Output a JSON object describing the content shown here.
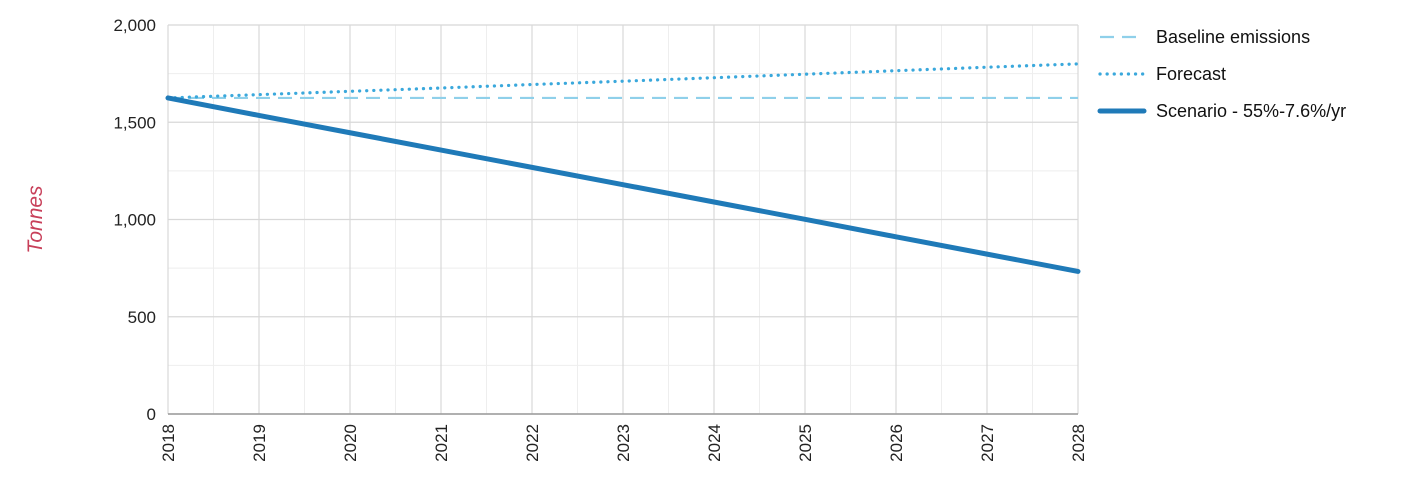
{
  "chart_data": {
    "type": "line",
    "title": "",
    "xlabel": "",
    "ylabel": "Tonnes",
    "x": [
      2018,
      2019,
      2020,
      2021,
      2022,
      2023,
      2024,
      2025,
      2026,
      2027,
      2028
    ],
    "xlim": [
      2018,
      2028
    ],
    "ylim": [
      0,
      2000
    ],
    "y_ticks": [
      0,
      500,
      1000,
      1500,
      2000
    ],
    "y_tick_labels": [
      "0",
      "500",
      "1,000",
      "1,500",
      "2,000"
    ],
    "x_tick_labels": [
      "2018",
      "2019",
      "2020",
      "2021",
      "2022",
      "2023",
      "2024",
      "2025",
      "2026",
      "2027",
      "2028"
    ],
    "grid": true,
    "legend_position": "top-right",
    "series": [
      {
        "name": "Baseline emissions",
        "style": "dashed",
        "color": "#8fd0ea",
        "values": [
          1625,
          1625,
          1625,
          1625,
          1625,
          1625,
          1625,
          1625,
          1625,
          1625,
          1625
        ]
      },
      {
        "name": "Forecast",
        "style": "dotted",
        "color": "#3aa8dc",
        "values": [
          1625,
          1642,
          1659,
          1676,
          1694,
          1711,
          1729,
          1747,
          1765,
          1783,
          1800
        ]
      },
      {
        "name": "Scenario - 55%-7.6%/yr",
        "style": "solid",
        "color": "#1f7ab8",
        "values": [
          1625,
          1535,
          1446,
          1357,
          1268,
          1179,
          1090,
          1001,
          911,
          822,
          733
        ]
      }
    ]
  }
}
